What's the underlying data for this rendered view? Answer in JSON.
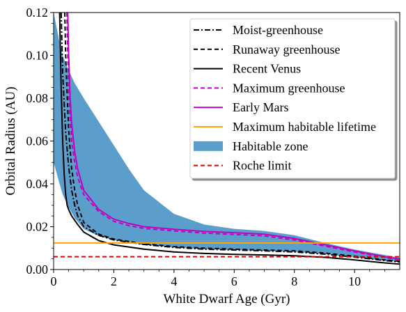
{
  "chart_data": {
    "type": "line",
    "title": "",
    "xlabel": "White Dwarf Age (Gyr)",
    "ylabel": "Orbital Radius (AU)",
    "xlim": [
      0,
      11.5
    ],
    "ylim": [
      0,
      0.12
    ],
    "xticks": [
      "0",
      "2",
      "4",
      "6",
      "8",
      "10"
    ],
    "yticks": [
      "0.00",
      "0.02",
      "0.04",
      "0.06",
      "0.08",
      "0.10",
      "0.12"
    ],
    "grid": false,
    "legend_position": "top-right",
    "habitable_zone": {
      "name": "Habitable zone",
      "color": "#5c9ecb",
      "outer_x": [
        0.0,
        0.1,
        0.2,
        0.3,
        0.5,
        0.7,
        1.0,
        1.5,
        2.0,
        2.5,
        3.0,
        4.0,
        5.0,
        6.0,
        7.0,
        8.0,
        9.0,
        10.0,
        11.0,
        11.5
      ],
      "outer_y": [
        0.12,
        0.113,
        0.106,
        0.1,
        0.093,
        0.087,
        0.08,
        0.069,
        0.058,
        0.047,
        0.037,
        0.026,
        0.021,
        0.019,
        0.018,
        0.016,
        0.0125,
        0.0093,
        0.0068,
        0.0055
      ],
      "inner_x": [
        0.0,
        0.1,
        0.2,
        0.3,
        0.5,
        0.7,
        1.0,
        1.5,
        2.0,
        2.5,
        3.0,
        4.0,
        5.0,
        6.0,
        7.0,
        8.0,
        9.0,
        10.0,
        11.0,
        11.5
      ],
      "inner_y": [
        0.05,
        0.045,
        0.04,
        0.035,
        0.029,
        0.024,
        0.019,
        0.0155,
        0.0138,
        0.0125,
        0.0115,
        0.0103,
        0.0095,
        0.0091,
        0.0087,
        0.0082,
        0.0072,
        0.0058,
        0.0042,
        0.0035
      ]
    },
    "series": [
      {
        "name": "Moist-greenhouse",
        "color": "#000000",
        "dash": "dashdot",
        "x": [
          0.25,
          0.3,
          0.35,
          0.4,
          0.5,
          0.6,
          0.7,
          0.8,
          1.0,
          1.5,
          2.0,
          3.0,
          4.0,
          5.0,
          6.0,
          7.0,
          8.0,
          9.0,
          10.0,
          11.0,
          11.5
        ],
        "y": [
          0.12,
          0.092,
          0.078,
          0.064,
          0.048,
          0.037,
          0.03,
          0.025,
          0.02,
          0.016,
          0.0138,
          0.0117,
          0.0103,
          0.0095,
          0.0091,
          0.0087,
          0.0082,
          0.0072,
          0.0058,
          0.0042,
          0.0035
        ]
      },
      {
        "name": "Runaway greenhouse",
        "color": "#000000",
        "dash": "dashed",
        "x": [
          0.37,
          0.4,
          0.45,
          0.5,
          0.6,
          0.7,
          0.8,
          1.0,
          1.5,
          2.0,
          3.0,
          4.0,
          5.0,
          6.0,
          7.0,
          8.0,
          9.0,
          10.0,
          11.0,
          11.5
        ],
        "y": [
          0.12,
          0.1,
          0.082,
          0.065,
          0.047,
          0.037,
          0.03,
          0.022,
          0.0165,
          0.0142,
          0.012,
          0.0107,
          0.01,
          0.0095,
          0.0091,
          0.0087,
          0.0077,
          0.0062,
          0.0045,
          0.0038
        ]
      },
      {
        "name": "Recent Venus",
        "color": "#000000",
        "dash": "solid",
        "x": [
          0.2,
          0.25,
          0.3,
          0.35,
          0.4,
          0.45,
          0.5,
          0.6,
          0.8,
          1.0,
          1.5,
          2.0,
          3.0,
          4.0,
          5.0,
          6.0,
          7.0,
          8.0,
          9.0,
          10.0,
          11.0,
          11.5
        ],
        "y": [
          0.12,
          0.085,
          0.06,
          0.045,
          0.035,
          0.03,
          0.028,
          0.025,
          0.021,
          0.0175,
          0.0135,
          0.0115,
          0.0095,
          0.0082,
          0.0075,
          0.0071,
          0.0068,
          0.0064,
          0.0057,
          0.0045,
          0.0031,
          0.0025
        ]
      },
      {
        "name": "Maximum greenhouse",
        "color": "#c000c0",
        "dash": "dashed",
        "x": [
          0.44,
          0.47,
          0.5,
          0.55,
          0.6,
          0.7,
          0.8,
          1.0,
          1.5,
          2.0,
          2.5,
          3.0,
          4.0,
          5.0,
          6.0,
          7.0,
          8.0,
          9.0,
          10.0,
          11.0,
          11.5
        ],
        "y": [
          0.12,
          0.1,
          0.085,
          0.07,
          0.06,
          0.05,
          0.043,
          0.035,
          0.027,
          0.0225,
          0.0205,
          0.0192,
          0.018,
          0.017,
          0.0164,
          0.0157,
          0.0138,
          0.011,
          0.0082,
          0.0057,
          0.0045
        ]
      },
      {
        "name": "Early Mars",
        "color": "#c000c0",
        "dash": "solid",
        "x": [
          0.47,
          0.5,
          0.55,
          0.6,
          0.7,
          0.8,
          1.0,
          1.5,
          2.0,
          2.5,
          3.0,
          4.0,
          5.0,
          6.0,
          7.0,
          8.0,
          9.0,
          10.0,
          11.0,
          11.5
        ],
        "y": [
          0.12,
          0.1,
          0.08,
          0.068,
          0.055,
          0.047,
          0.037,
          0.028,
          0.0235,
          0.0215,
          0.02,
          0.0188,
          0.0178,
          0.0172,
          0.0165,
          0.0145,
          0.0116,
          0.0087,
          0.006,
          0.0048
        ]
      },
      {
        "name": "Maximum habitable lifetime",
        "color": "#ffa500",
        "dash": "solid",
        "x": [
          0,
          11.5
        ],
        "y": [
          0.0124,
          0.0124
        ]
      },
      {
        "name": "Roche limit",
        "color": "#e00000",
        "dash": "dashed",
        "x": [
          0,
          11.5
        ],
        "y": [
          0.006,
          0.006
        ]
      }
    ],
    "legend": [
      {
        "label": "Moist-greenhouse",
        "kind": "line",
        "color": "#000000",
        "dash": "dashdot"
      },
      {
        "label": "Runaway greenhouse",
        "kind": "line",
        "color": "#000000",
        "dash": "dashed"
      },
      {
        "label": "Recent Venus",
        "kind": "line",
        "color": "#000000",
        "dash": "solid"
      },
      {
        "label": "Maximum greenhouse",
        "kind": "line",
        "color": "#c000c0",
        "dash": "dashed"
      },
      {
        "label": "Early Mars",
        "kind": "line",
        "color": "#c000c0",
        "dash": "solid"
      },
      {
        "label": "Maximum habitable lifetime",
        "kind": "line",
        "color": "#ffa500",
        "dash": "solid"
      },
      {
        "label": "Habitable zone",
        "kind": "patch",
        "color": "#5c9ecb",
        "dash": "solid"
      },
      {
        "label": "Roche limit",
        "kind": "line",
        "color": "#e00000",
        "dash": "dashed"
      }
    ]
  }
}
